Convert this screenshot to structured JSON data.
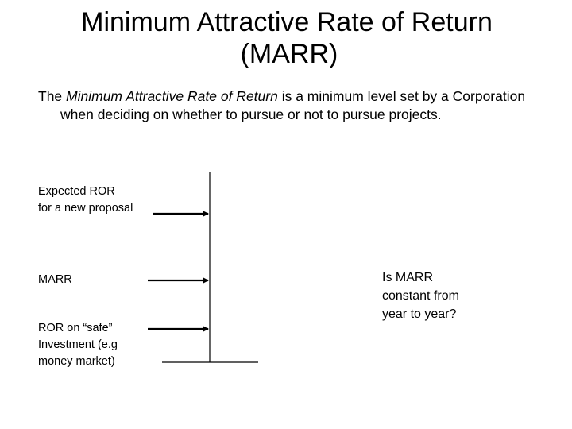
{
  "title": {
    "line1": "Minimum Attractive Rate of Return",
    "line2": "(MARR)"
  },
  "intro": {
    "prefix": "The ",
    "term": "Minimum Attractive Rate of Return",
    "suffix": " is a minimum level set by a Corporation when deciding on whether to pursue or not to pursue projects."
  },
  "diagram": {
    "expected_ror": {
      "line1": "Expected ROR",
      "line2": "for a new proposal"
    },
    "marr": {
      "line1": "MARR"
    },
    "safe_ror": {
      "line1": "ROR on “safe”",
      "line2": "Investment (e.g",
      "line3": "money market)"
    },
    "question": {
      "line1": "Is MARR",
      "line2": "constant from",
      "line3": "year to year?"
    }
  }
}
